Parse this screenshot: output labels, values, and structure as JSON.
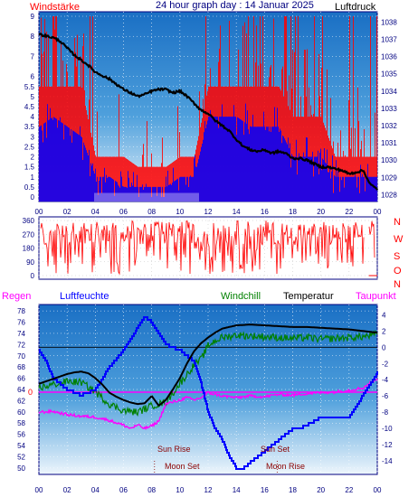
{
  "header": {
    "left": "Windstärke",
    "center": "24 hour graph day : 14 Januar 2025",
    "right": "Luftdruck"
  },
  "labels": {
    "regen": "Regen",
    "luftfeuchte": "Luftfeuchte",
    "windchill": "Windchill",
    "temperatur": "Temperatur",
    "taupunkt": "Taupunkt",
    "sun_rise": "Sun Rise",
    "sun_set": "Sun Set",
    "moon_set": "Moon Set",
    "moon_rise": "Moon Rise",
    "regen_zero": "0"
  },
  "compass": [
    "N",
    "W",
    "S",
    "O",
    "N"
  ],
  "colors": {
    "wind_gust": "#ff0000",
    "wind_avg": "#0000ff",
    "pressure": "#000000",
    "humidity": "#0000ff",
    "windchill": "#008000",
    "temperature": "#000000",
    "dewpoint": "#ff00ff",
    "panel_top": "#1e78c8",
    "panel_bottom": "#eaf4fb"
  },
  "chart_data": [
    {
      "type": "line",
      "name": "wind-pressure",
      "x_ticks": [
        "00",
        "02",
        "04",
        "06",
        "08",
        "10",
        "12",
        "14",
        "16",
        "18",
        "20",
        "22",
        "00"
      ],
      "left_axis": {
        "label": "Windstärke",
        "ticks": [
          0,
          0.5,
          1,
          1.5,
          2,
          2.5,
          3,
          3.5,
          4,
          4.5,
          5,
          5.5,
          6,
          7,
          8,
          9
        ],
        "ylim": [
          0,
          9
        ]
      },
      "right_axis": {
        "label": "Luftdruck",
        "ticks": [
          1028,
          1029,
          1030,
          1031,
          1032,
          1033,
          1034,
          1035,
          1036,
          1037,
          1038
        ],
        "ylim": [
          1027.6,
          1038.6
        ]
      },
      "pressure": {
        "hours": [
          0,
          0.5,
          1,
          1.5,
          2,
          2.5,
          3,
          3.5,
          4,
          4.5,
          5,
          5.5,
          6,
          6.5,
          7,
          7.5,
          8,
          8.5,
          9,
          9.5,
          10,
          10.5,
          11,
          11.5,
          12,
          12.5,
          13,
          13.5,
          14,
          14.5,
          15,
          15.5,
          16,
          16.5,
          17,
          17.5,
          18,
          18.5,
          19,
          19.5,
          20,
          20.5,
          21,
          21.5,
          22,
          22.5,
          23,
          23.5,
          24
        ],
        "values": [
          1037.3,
          1037.2,
          1037.1,
          1036.9,
          1036.5,
          1036.1,
          1035.8,
          1035.5,
          1035.1,
          1034.9,
          1034.7,
          1034.4,
          1034.1,
          1033.9,
          1033.7,
          1033.8,
          1034.0,
          1034.1,
          1034.1,
          1033.9,
          1034.0,
          1033.7,
          1033.3,
          1032.9,
          1032.7,
          1032.3,
          1032.0,
          1031.7,
          1031.2,
          1030.8,
          1030.6,
          1030.5,
          1030.6,
          1030.4,
          1030.5,
          1030.4,
          1030.1,
          1030.1,
          1030.0,
          1029.8,
          1029.6,
          1029.6,
          1029.5,
          1029.4,
          1029.2,
          1029.3,
          1029.4,
          1028.6,
          1028.3
        ]
      },
      "wind_gust_level": {
        "hours": [
          0,
          1,
          2,
          3,
          4,
          5,
          6,
          7,
          8,
          9,
          10,
          11,
          12,
          13,
          14,
          15,
          16,
          17,
          18,
          19,
          20,
          21,
          22,
          23,
          24
        ],
        "values": [
          5.5,
          5.5,
          5.5,
          5.5,
          2,
          2,
          2,
          1.5,
          1.5,
          1.5,
          2,
          2,
          5.5,
          5.5,
          5.5,
          5.5,
          5.5,
          5.5,
          4,
          4,
          4,
          2,
          2,
          2,
          2
        ]
      },
      "wind_avg_level": {
        "hours": [
          0,
          1,
          2,
          3,
          4,
          5,
          6,
          7,
          8,
          9,
          10,
          11,
          12,
          13,
          14,
          15,
          16,
          17,
          18,
          19,
          20,
          21,
          22,
          23,
          24
        ],
        "values": [
          3.5,
          4,
          3.5,
          3,
          1,
          1,
          0.5,
          0.5,
          0.5,
          0.5,
          1,
          1,
          4,
          4,
          4,
          3.5,
          3.5,
          3.5,
          2,
          2,
          2,
          1,
          1,
          1,
          1
        ]
      }
    },
    {
      "type": "line",
      "name": "wind-direction",
      "y_ticks": [
        0,
        90,
        180,
        270,
        360
      ],
      "ylim": [
        0,
        360
      ],
      "activity_hours": [
        [
          0.2,
          11.4
        ],
        [
          11.5,
          24
        ]
      ]
    },
    {
      "type": "line",
      "name": "temperature-humidity",
      "x_ticks": [
        "00",
        "02",
        "04",
        "06",
        "08",
        "10",
        "12",
        "14",
        "16",
        "18",
        "20",
        "22",
        "00"
      ],
      "left_axis": {
        "ticks": [
          50,
          52,
          54,
          56,
          58,
          60,
          62,
          64,
          66,
          68,
          70,
          72,
          74,
          76,
          78
        ],
        "ylim": [
          49.5,
          78.5
        ]
      },
      "right_axis": {
        "ticks": [
          -14,
          -12,
          -10,
          -8,
          -6,
          -4,
          -2,
          0,
          2,
          4
        ],
        "ylim": [
          -15,
          4.6
        ]
      },
      "humidity": {
        "hours": [
          0,
          0.5,
          1,
          1.5,
          2,
          3,
          3.5,
          4,
          5,
          6,
          7,
          7.5,
          8,
          8.5,
          9,
          10,
          10.5,
          11,
          11.5,
          12,
          12.5,
          13,
          13.5,
          14,
          14.5,
          15,
          16,
          17,
          18,
          18.5,
          20,
          21,
          22,
          22.5,
          23,
          23.5,
          24
        ],
        "values": [
          71,
          69,
          66,
          65,
          64,
          63,
          63.5,
          64,
          68,
          71,
          75,
          77,
          76,
          74,
          72,
          71,
          70,
          69,
          65,
          60,
          57,
          55,
          52,
          50,
          50,
          51,
          53,
          55,
          57,
          57,
          59,
          59,
          59,
          61,
          63,
          65,
          67
        ]
      },
      "temperature": {
        "hours": [
          0,
          0.5,
          1,
          1.5,
          2,
          2.5,
          3,
          3.5,
          4,
          4.5,
          5,
          5.5,
          6,
          6.5,
          7,
          7.5,
          8,
          8.5,
          9,
          9.5,
          10,
          10.5,
          11,
          11.5,
          12,
          12.5,
          13,
          14,
          15,
          16,
          17,
          18,
          19,
          20,
          21,
          22,
          23,
          24
        ],
        "values": [
          -4.5,
          -4.2,
          -3.9,
          -3.6,
          -3.3,
          -3.1,
          -3.0,
          -3.2,
          -3.8,
          -4.6,
          -5.6,
          -6.1,
          -6.5,
          -6.8,
          -7.0,
          -6.9,
          -6.0,
          -7.2,
          -6.5,
          -5.2,
          -3.8,
          -2.0,
          -0.5,
          0.5,
          1.2,
          1.8,
          2.3,
          2.7,
          2.8,
          2.7,
          2.6,
          2.5,
          2.5,
          2.4,
          2.3,
          2.2,
          2.0,
          1.8
        ]
      },
      "windchill": {
        "hours": [
          0,
          1,
          2,
          3,
          4,
          5,
          6,
          7,
          8,
          9,
          10,
          11,
          11.5,
          12,
          12.5,
          13,
          14,
          15,
          16,
          17,
          18,
          19,
          20,
          21,
          22,
          23,
          24
        ],
        "values": [
          -5,
          -4.6,
          -4.2,
          -4.3,
          -5.5,
          -7.0,
          -7.8,
          -8.0,
          -7.2,
          -6.8,
          -4.5,
          -2.2,
          -1.5,
          0.2,
          0.8,
          1.2,
          1.5,
          1.4,
          1.3,
          1.2,
          1.1,
          1.2,
          1.0,
          1.1,
          1.2,
          1.3,
          1.6
        ]
      },
      "dewpoint": {
        "hours": [
          0,
          1,
          2,
          3,
          4,
          5,
          6,
          6.5,
          7,
          7.5,
          8,
          8.5,
          9,
          10,
          10.5,
          11,
          11.5,
          12,
          13,
          14,
          15,
          16,
          17,
          18,
          19,
          20,
          21,
          22,
          23,
          23.5,
          24
        ],
        "values": [
          -8.0,
          -7.9,
          -8.3,
          -8.5,
          -8.6,
          -9.0,
          -9.6,
          -10.0,
          -9.6,
          -10.0,
          -9.7,
          -9.1,
          -7.0,
          -6.5,
          -6.2,
          -6.5,
          -6.2,
          -5.6,
          -6.0,
          -6.2,
          -6.0,
          -6.1,
          -5.8,
          -5.9,
          -5.7,
          -5.6,
          -5.5,
          -5.3,
          -5.0,
          -4.4,
          -3.8
        ]
      }
    }
  ]
}
